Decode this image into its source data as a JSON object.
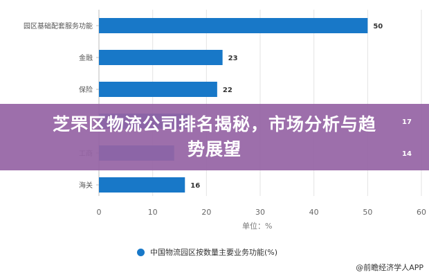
{
  "chart_data": {
    "type": "bar",
    "orientation": "horizontal",
    "categories": [
      "园区基础配套服务功能",
      "金融",
      "保险",
      "",
      "工商",
      "海关"
    ],
    "values": [
      50,
      23,
      22,
      17,
      14,
      16
    ],
    "xlim": [
      0,
      60
    ],
    "xticks": [
      0,
      10,
      20,
      30,
      40,
      50,
      60
    ],
    "xlabel": "单位：%",
    "grid": true,
    "legend_placement": "bottom",
    "series": [
      {
        "name": "中国物流园区按数量主要业务功能(%)",
        "color": "#1878c8"
      }
    ],
    "bar_color": "#1878c8"
  },
  "banner": {
    "title": "芝罘区物流公司排名揭秘，市场分析与趋势展望",
    "color": "#9664a5"
  },
  "credit": "@前瞻经济学人APP"
}
